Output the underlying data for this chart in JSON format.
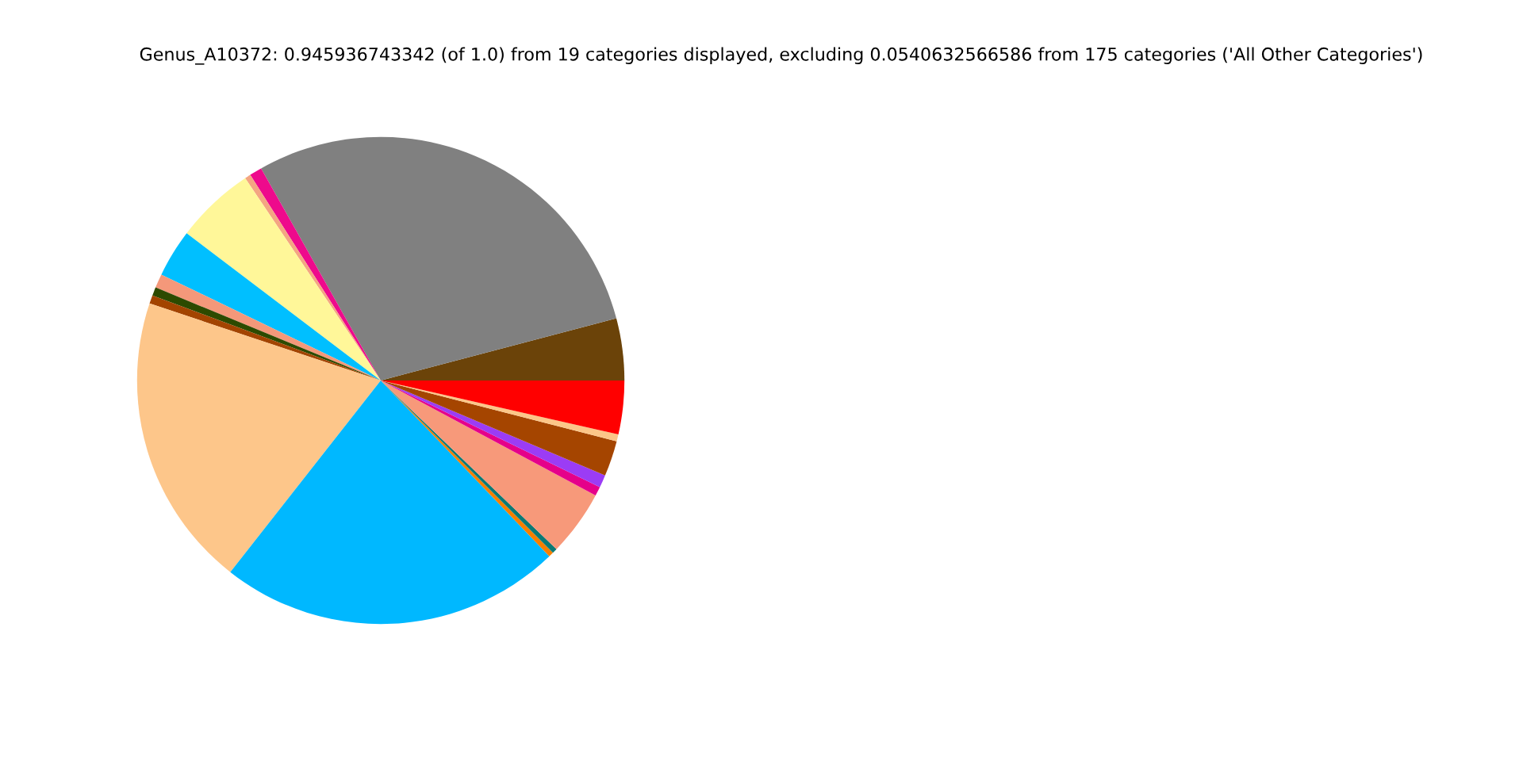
{
  "chart_data": {
    "type": "pie",
    "title": "Genus_A10372: 0.945936743342 (of 1.0) from 19 categories displayed, excluding 0.0540632566586 from 175 categories ('All Other Categories')",
    "categories": [
      null,
      null,
      null,
      null,
      null,
      null,
      null,
      null,
      null,
      null,
      null,
      null,
      null,
      null,
      null,
      null,
      null,
      null,
      null
    ],
    "values": [
      4.11,
      29.06,
      0.83,
      0.39,
      5.28,
      3.17,
      0.92,
      0.56,
      0.56,
      19.53,
      22.75,
      0.33,
      0.33,
      4.36,
      0.61,
      0.83,
      2.36,
      0.47,
      3.55
    ],
    "colors": [
      "#6b4309",
      "#808080",
      "#ee0a8c",
      "#f4a582",
      "#fff799",
      "#00bfff",
      "#f4987a",
      "#2d4a00",
      "#a34400",
      "#fdc68a",
      "#00b8ff",
      "#f57f00",
      "#0b7a75",
      "#f7997a",
      "#e5008a",
      "#9b3cf5",
      "#a54500",
      "#fcc688",
      "#ff0000"
    ]
  }
}
